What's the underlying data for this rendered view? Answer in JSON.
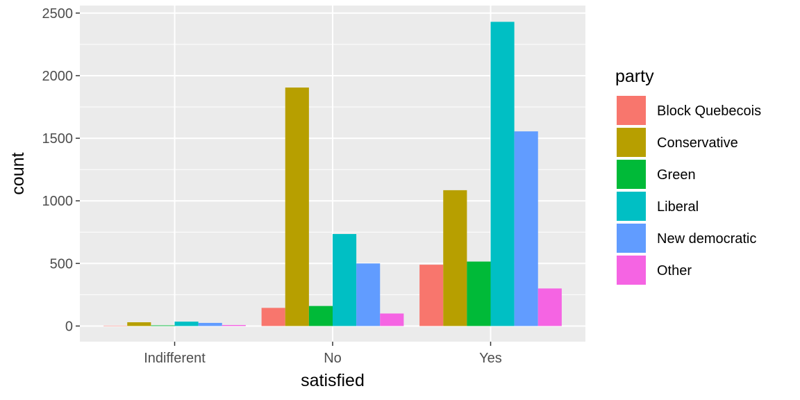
{
  "chart_data": {
    "type": "bar",
    "xlabel": "satisfied",
    "ylabel": "count",
    "categories": [
      "Indifferent",
      "No",
      "Yes"
    ],
    "ylim": [
      -125,
      2560
    ],
    "yticks": [
      0,
      500,
      1000,
      1500,
      2000,
      2500
    ],
    "grid": true,
    "legend": {
      "title": "party",
      "position": "right"
    },
    "series": [
      {
        "name": "Block Quebecois",
        "color": "#F8766D",
        "values": [
          3,
          145,
          490
        ]
      },
      {
        "name": "Conservative",
        "color": "#B79F00",
        "values": [
          30,
          1905,
          1085
        ]
      },
      {
        "name": "Green",
        "color": "#00BA38",
        "values": [
          5,
          160,
          515
        ]
      },
      {
        "name": "Liberal",
        "color": "#00BFC4",
        "values": [
          35,
          735,
          2430
        ]
      },
      {
        "name": "New democratic",
        "color": "#619CFF",
        "values": [
          25,
          500,
          1555
        ]
      },
      {
        "name": "Other",
        "color": "#F564E3",
        "values": [
          8,
          100,
          300
        ]
      }
    ]
  },
  "colors": {
    "panel_background": "#EBEBEB",
    "grid_major": "#FFFFFF",
    "tick_mark": "#333333"
  }
}
